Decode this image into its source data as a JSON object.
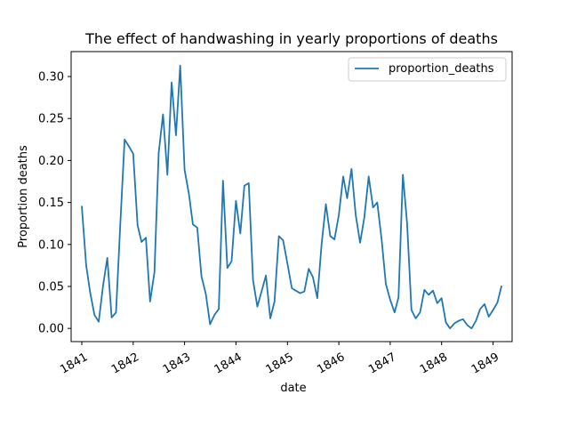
{
  "chart_data": {
    "type": "line",
    "title": "The effect of handwashing in yearly proportions of deaths",
    "xlabel": "date",
    "ylabel": "Proportion deaths",
    "xlim": [
      "1840-10-17",
      "1849-05-16"
    ],
    "ylim": [
      -0.0157,
      0.3297
    ],
    "yticks": [
      0.0,
      0.05,
      0.1,
      0.15,
      0.2,
      0.25,
      0.3
    ],
    "ytick_labels": [
      "0.00",
      "0.05",
      "0.10",
      "0.15",
      "0.20",
      "0.25",
      "0.30"
    ],
    "xticks": [
      "1841-01-01",
      "1842-01-01",
      "1843-01-01",
      "1844-01-01",
      "1845-01-01",
      "1846-01-01",
      "1847-01-01",
      "1848-01-01",
      "1849-01-01"
    ],
    "xtick_labels": [
      "1841",
      "1842",
      "1843",
      "1844",
      "1845",
      "1846",
      "1847",
      "1848",
      "1849"
    ],
    "grid": false,
    "legend": {
      "position": "top-right"
    },
    "series": [
      {
        "name": "proportion_deaths",
        "color": "#1f77b4",
        "points": [
          [
            "1841-01-01",
            0.145
          ],
          [
            "1841-02-01",
            0.075
          ],
          [
            "1841-03-01",
            0.043
          ],
          [
            "1841-04-01",
            0.016
          ],
          [
            "1841-05-01",
            0.008
          ],
          [
            "1841-06-01",
            0.051
          ],
          [
            "1841-07-01",
            0.084
          ],
          [
            "1841-08-01",
            0.013
          ],
          [
            "1841-09-01",
            0.019
          ],
          [
            "1841-10-01",
            0.123
          ],
          [
            "1841-11-01",
            0.225
          ],
          [
            "1841-12-01",
            0.217
          ],
          [
            "1842-01-01",
            0.208
          ],
          [
            "1842-02-01",
            0.123
          ],
          [
            "1842-03-01",
            0.103
          ],
          [
            "1842-04-01",
            0.108
          ],
          [
            "1842-05-01",
            0.032
          ],
          [
            "1842-06-01",
            0.067
          ],
          [
            "1842-07-01",
            0.209
          ],
          [
            "1842-08-01",
            0.255
          ],
          [
            "1842-09-01",
            0.183
          ],
          [
            "1842-10-01",
            0.293
          ],
          [
            "1842-11-01",
            0.23
          ],
          [
            "1842-12-01",
            0.313
          ],
          [
            "1843-01-01",
            0.189
          ],
          [
            "1843-02-01",
            0.16
          ],
          [
            "1843-03-01",
            0.124
          ],
          [
            "1843-04-01",
            0.12
          ],
          [
            "1843-05-01",
            0.062
          ],
          [
            "1843-06-01",
            0.041
          ],
          [
            "1843-07-01",
            0.005
          ],
          [
            "1843-08-01",
            0.016
          ],
          [
            "1843-09-01",
            0.023
          ],
          [
            "1843-10-01",
            0.176
          ],
          [
            "1843-11-01",
            0.072
          ],
          [
            "1843-12-01",
            0.08
          ],
          [
            "1844-01-01",
            0.152
          ],
          [
            "1844-02-01",
            0.113
          ],
          [
            "1844-03-01",
            0.17
          ],
          [
            "1844-04-01",
            0.173
          ],
          [
            "1844-05-01",
            0.058
          ],
          [
            "1844-06-01",
            0.026
          ],
          [
            "1844-07-01",
            0.044
          ],
          [
            "1844-08-01",
            0.063
          ],
          [
            "1844-09-01",
            0.012
          ],
          [
            "1844-10-01",
            0.032
          ],
          [
            "1844-11-01",
            0.11
          ],
          [
            "1844-12-01",
            0.105
          ],
          [
            "1845-01-01",
            0.077
          ],
          [
            "1845-02-01",
            0.048
          ],
          [
            "1845-03-01",
            0.045
          ],
          [
            "1845-04-01",
            0.042
          ],
          [
            "1845-05-01",
            0.044
          ],
          [
            "1845-06-01",
            0.071
          ],
          [
            "1845-07-01",
            0.061
          ],
          [
            "1845-08-01",
            0.036
          ],
          [
            "1845-09-01",
            0.101
          ],
          [
            "1845-10-01",
            0.148
          ],
          [
            "1845-11-01",
            0.11
          ],
          [
            "1845-12-01",
            0.106
          ],
          [
            "1846-01-01",
            0.135
          ],
          [
            "1846-02-01",
            0.181
          ],
          [
            "1846-03-01",
            0.155
          ],
          [
            "1846-04-01",
            0.19
          ],
          [
            "1846-05-01",
            0.135
          ],
          [
            "1846-06-01",
            0.102
          ],
          [
            "1846-07-01",
            0.132
          ],
          [
            "1846-08-01",
            0.181
          ],
          [
            "1846-09-01",
            0.144
          ],
          [
            "1846-10-01",
            0.15
          ],
          [
            "1846-11-01",
            0.106
          ],
          [
            "1846-12-01",
            0.053
          ],
          [
            "1847-01-01",
            0.034
          ],
          [
            "1847-02-01",
            0.019
          ],
          [
            "1847-03-01",
            0.037
          ],
          [
            "1847-04-01",
            0.183
          ],
          [
            "1847-05-01",
            0.125
          ],
          [
            "1847-06-01",
            0.022
          ],
          [
            "1847-07-01",
            0.012
          ],
          [
            "1847-08-01",
            0.019
          ],
          [
            "1847-09-01",
            0.046
          ],
          [
            "1847-10-01",
            0.04
          ],
          [
            "1847-11-01",
            0.045
          ],
          [
            "1847-12-01",
            0.03
          ],
          [
            "1848-01-01",
            0.036
          ],
          [
            "1848-02-01",
            0.007
          ],
          [
            "1848-03-01",
            0.0
          ],
          [
            "1848-04-01",
            0.006
          ],
          [
            "1848-05-01",
            0.009
          ],
          [
            "1848-06-01",
            0.011
          ],
          [
            "1848-07-01",
            0.004
          ],
          [
            "1848-08-01",
            0.0
          ],
          [
            "1848-09-01",
            0.009
          ],
          [
            "1848-10-01",
            0.023
          ],
          [
            "1848-11-01",
            0.029
          ],
          [
            "1848-12-01",
            0.014
          ],
          [
            "1849-01-01",
            0.022
          ],
          [
            "1849-02-01",
            0.031
          ],
          [
            "1849-03-01",
            0.05
          ]
        ]
      }
    ]
  }
}
